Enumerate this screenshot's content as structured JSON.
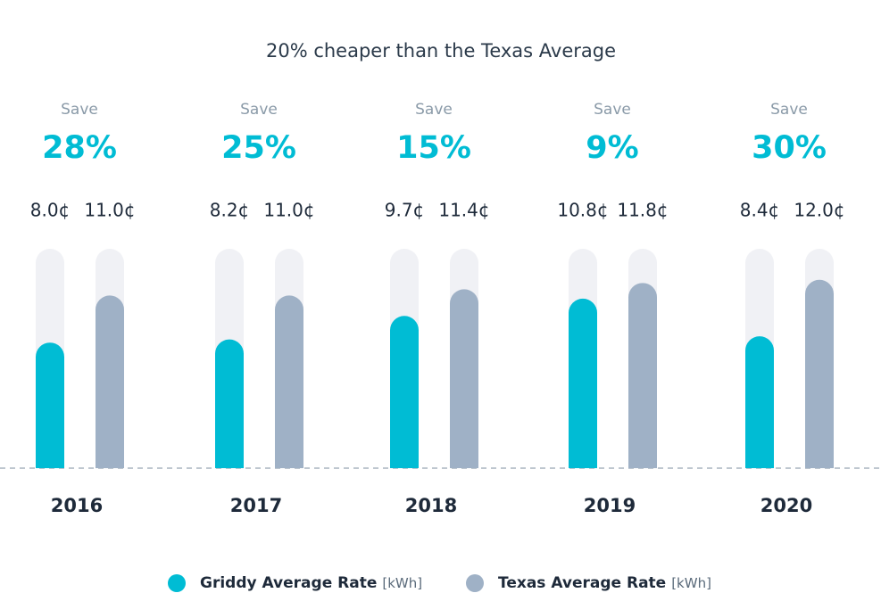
{
  "chart_data": {
    "type": "bar",
    "title": "20% cheaper than the Texas Average",
    "categories": [
      "2016",
      "2017",
      "2018",
      "2019",
      "2020"
    ],
    "annotations": [
      {
        "label": "Save",
        "value": "28%"
      },
      {
        "label": "Save",
        "value": "25%"
      },
      {
        "label": "Save",
        "value": "15%"
      },
      {
        "label": "Save",
        "value": "9%"
      },
      {
        "label": "Save",
        "value": "30%"
      }
    ],
    "series": [
      {
        "name": "Griddy Average Rate",
        "unit": "[kWh]",
        "color": "#00bcd4",
        "values": [
          8.0,
          8.2,
          9.7,
          10.8,
          8.4
        ],
        "value_labels": [
          "8.0¢",
          "8.2¢",
          "9.7¢",
          "10.8¢",
          "8.4¢"
        ]
      },
      {
        "name": "Texas Average Rate",
        "unit": "[kWh]",
        "color": "#9fb1c6",
        "values": [
          11.0,
          11.0,
          11.4,
          11.8,
          12.0
        ],
        "value_labels": [
          "11.0¢",
          "11.0¢",
          "11.4¢",
          "11.8¢",
          "12.0¢"
        ]
      }
    ]
  }
}
